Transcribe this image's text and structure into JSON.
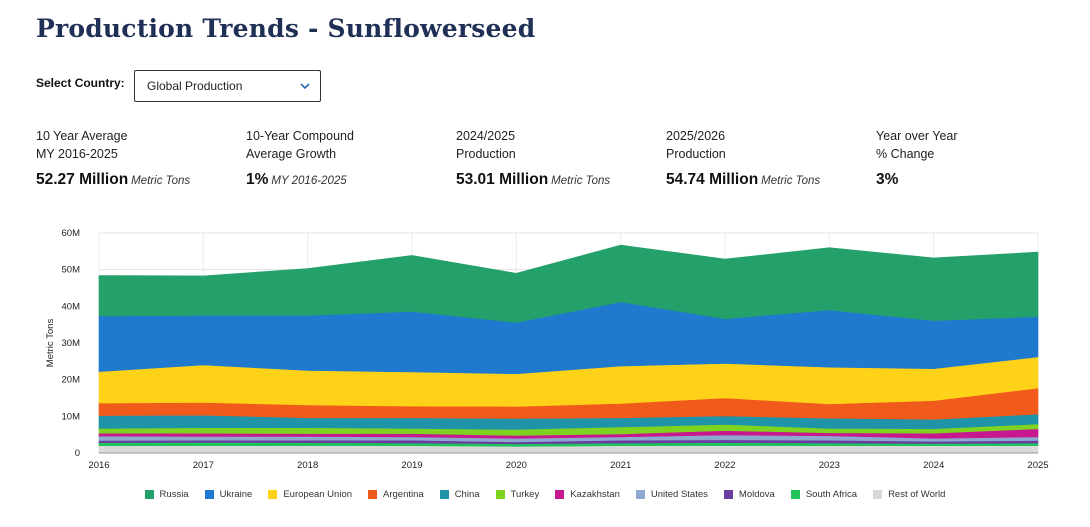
{
  "page": {
    "title": "Production Trends - Sunflowerseed"
  },
  "country_select": {
    "label": "Select Country:",
    "value": "Global Production"
  },
  "stats": [
    {
      "line1": "10 Year Average",
      "line2": "MY 2016-2025",
      "value": "52.27 Million",
      "unit": "Metric Tons"
    },
    {
      "line1": "10-Year Compound",
      "line2": "Average Growth",
      "value": "1%",
      "unit": "MY 2016-2025"
    },
    {
      "line1": "2024/2025",
      "line2": "Production",
      "value": "53.01 Million",
      "unit": "Metric Tons"
    },
    {
      "line1": "2025/2026",
      "line2": "Production",
      "value": "54.74 Million",
      "unit": "Metric Tons"
    },
    {
      "line1": "Year over Year",
      "line2": "% Change",
      "value": "3%",
      "unit": ""
    }
  ],
  "chart_data": {
    "type": "area",
    "stacked": true,
    "title": "",
    "xlabel": "",
    "ylabel": "Metric Tons",
    "x": [
      "2016",
      "2017",
      "2018",
      "2019",
      "2020",
      "2021",
      "2022",
      "2023",
      "2024",
      "2025"
    ],
    "ylim": [
      0,
      60000000
    ],
    "yticks": [
      0,
      10000000,
      20000000,
      30000000,
      40000000,
      50000000,
      60000000
    ],
    "ytick_labels": [
      "0",
      "10M",
      "20M",
      "30M",
      "40M",
      "50M",
      "60M"
    ],
    "grid": true,
    "legend_position": "bottom",
    "series": [
      {
        "name": "Rest of World",
        "color": "#d9d9d9",
        "values": [
          2000000,
          2000000,
          2000000,
          2000000,
          1800000,
          2000000,
          2000000,
          2000000,
          2000000,
          2000000
        ]
      },
      {
        "name": "South Africa",
        "color": "#1fc45b",
        "values": [
          800000,
          900000,
          800000,
          700000,
          700000,
          700000,
          800000,
          700000,
          600000,
          700000
        ]
      },
      {
        "name": "Moldova",
        "color": "#6a3da0",
        "values": [
          600000,
          600000,
          700000,
          800000,
          500000,
          800000,
          800000,
          800000,
          600000,
          700000
        ]
      },
      {
        "name": "United States",
        "color": "#8da9cf",
        "values": [
          1200000,
          1000000,
          1000000,
          900000,
          1000000,
          900000,
          1300000,
          1200000,
          800000,
          1000000
        ]
      },
      {
        "name": "Kazakhstan",
        "color": "#c7188e",
        "values": [
          800000,
          900000,
          800000,
          900000,
          800000,
          800000,
          1200000,
          800000,
          1400000,
          2200000
        ]
      },
      {
        "name": "Turkey",
        "color": "#7ed321",
        "values": [
          1300000,
          1500000,
          1600000,
          1400000,
          1600000,
          1900000,
          1700000,
          1200000,
          1200000,
          1300000
        ]
      },
      {
        "name": "China",
        "color": "#1f93a8",
        "values": [
          3500000,
          3400000,
          2700000,
          2900000,
          3000000,
          2500000,
          2300000,
          2800000,
          2600000,
          2700000
        ]
      },
      {
        "name": "Argentina",
        "color": "#f05a1a",
        "values": [
          3400000,
          3500000,
          3500000,
          3200000,
          3300000,
          3900000,
          4900000,
          3900000,
          5100000,
          7100000
        ]
      },
      {
        "name": "European Union",
        "color": "#ffd21a",
        "values": [
          8600000,
          10200000,
          9400000,
          9300000,
          8900000,
          10200000,
          9400000,
          10000000,
          8700000,
          8500000
        ]
      },
      {
        "name": "Ukraine",
        "color": "#1f7acf",
        "values": [
          15200000,
          13500000,
          15000000,
          16500000,
          14000000,
          17500000,
          12200000,
          15600000,
          13100000,
          11000000
        ]
      },
      {
        "name": "Russia",
        "color": "#24a06a",
        "values": [
          11000000,
          10800000,
          12800000,
          15300000,
          13400000,
          15500000,
          16300000,
          17000000,
          17100000,
          17600000
        ]
      }
    ]
  },
  "legend": [
    {
      "name": "Russia",
      "color": "#24a06a"
    },
    {
      "name": "Ukraine",
      "color": "#1f7acf"
    },
    {
      "name": "European Union",
      "color": "#ffd21a"
    },
    {
      "name": "Argentina",
      "color": "#f05a1a"
    },
    {
      "name": "China",
      "color": "#1f93a8"
    },
    {
      "name": "Turkey",
      "color": "#7ed321"
    },
    {
      "name": "Kazakhstan",
      "color": "#c7188e"
    },
    {
      "name": "United States",
      "color": "#8da9cf"
    },
    {
      "name": "Moldova",
      "color": "#6a3da0"
    },
    {
      "name": "South Africa",
      "color": "#1fc45b"
    },
    {
      "name": "Rest of World",
      "color": "#d9d9d9"
    }
  ]
}
